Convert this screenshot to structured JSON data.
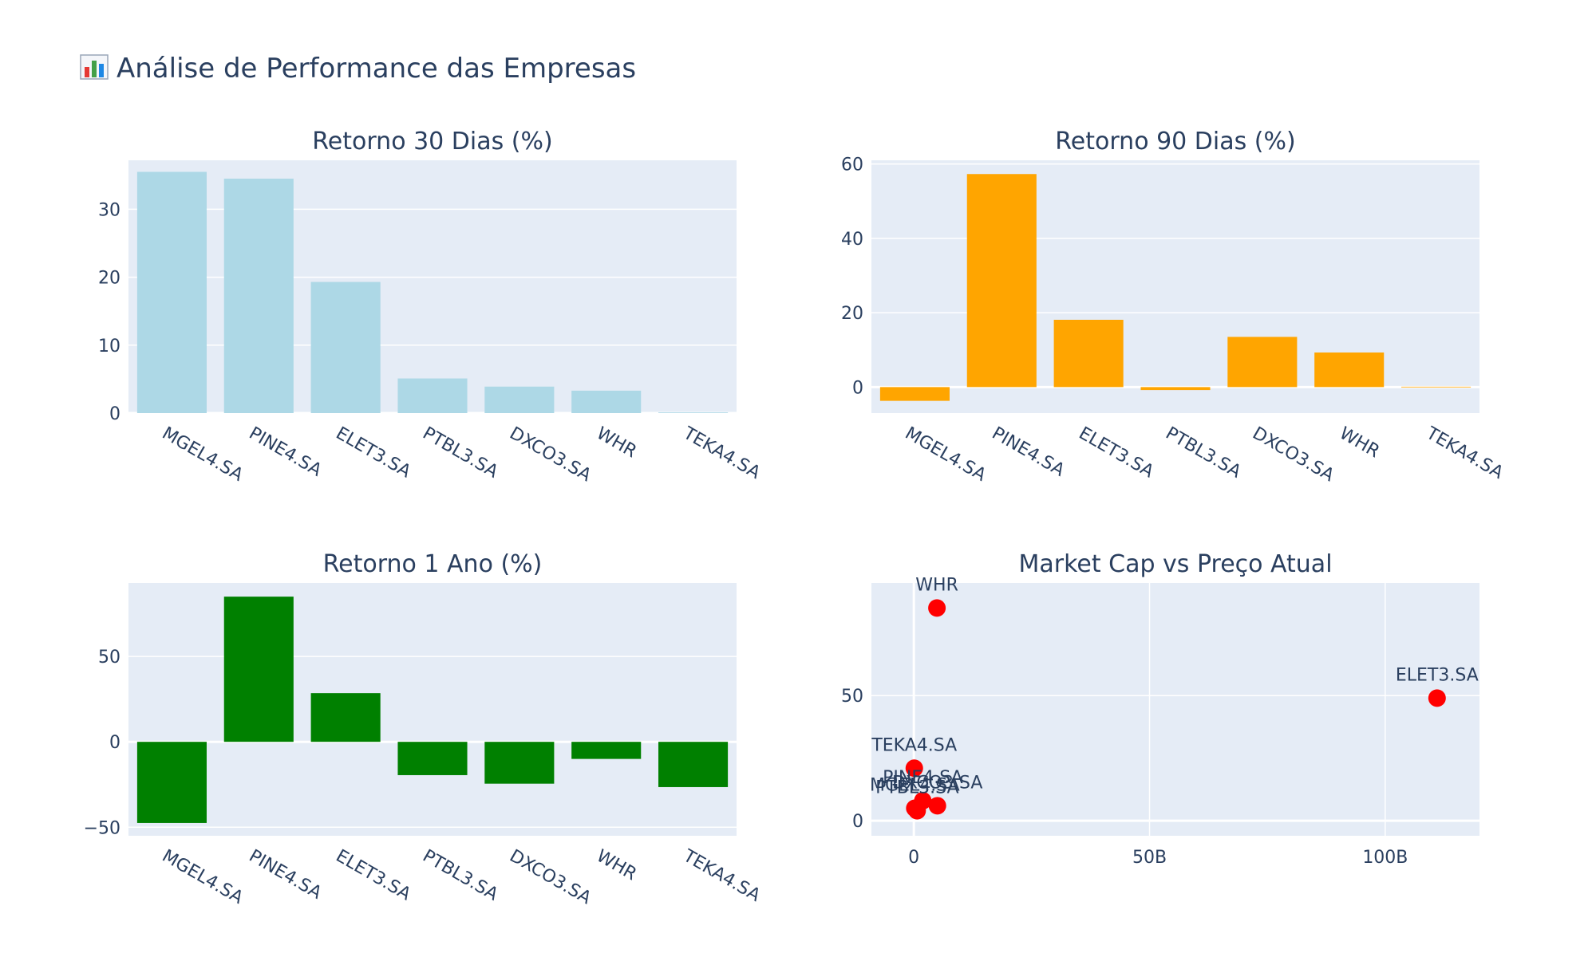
{
  "page": {
    "title": "Análise de Performance das Empresas",
    "title_icon": "bar-chart-icon"
  },
  "chart_data": [
    {
      "type": "bar",
      "title": "Retorno 30 Dias (%)",
      "categories": [
        "MGEL4.SA",
        "PINE4.SA",
        "ELET3.SA",
        "PTBL3.SA",
        "DXCO3.SA",
        "WHR",
        "TEKA4.SA"
      ],
      "values": [
        35.5,
        34.5,
        19.3,
        5.1,
        3.9,
        3.3,
        0.1
      ],
      "ylim": [
        0,
        37.2
      ],
      "yticks": [
        0,
        10,
        20,
        30
      ],
      "color": "#add8e6",
      "grid": true
    },
    {
      "type": "bar",
      "title": "Retorno 90 Dias (%)",
      "categories": [
        "MGEL4.SA",
        "PINE4.SA",
        "ELET3.SA",
        "PTBL3.SA",
        "DXCO3.SA",
        "WHR",
        "TEKA4.SA"
      ],
      "values": [
        -3.7,
        57.3,
        18.1,
        -0.8,
        13.5,
        9.3,
        0.1
      ],
      "ylim": [
        -7,
        61
      ],
      "yticks": [
        0,
        20,
        40,
        60
      ],
      "color": "#ffa500",
      "grid": true
    },
    {
      "type": "bar",
      "title": "Retorno 1 Ano (%)",
      "categories": [
        "MGEL4.SA",
        "PINE4.SA",
        "ELET3.SA",
        "PTBL3.SA",
        "DXCO3.SA",
        "WHR",
        "TEKA4.SA"
      ],
      "values": [
        -47.5,
        85,
        28.5,
        -19.5,
        -24.5,
        -10,
        -26.5
      ],
      "ylim": [
        -55,
        93
      ],
      "yticks": [
        -50,
        0,
        50
      ],
      "ytick_labels": [
        "−50",
        "0",
        "50"
      ],
      "color": "#008000",
      "grid": true
    },
    {
      "type": "scatter",
      "title": "Market Cap vs Preço Atual",
      "points": [
        {
          "label": "WHR",
          "x": 4.9,
          "y": 85
        },
        {
          "label": "ELET3.SA",
          "x": 111,
          "y": 49
        },
        {
          "label": "TEKA4.SA",
          "x": 0.1,
          "y": 21
        },
        {
          "label": "PINE4.SA",
          "x": 1.9,
          "y": 8
        },
        {
          "label": "MGEL4.SA",
          "x": 0.2,
          "y": 5
        },
        {
          "label": "DXCO3.SA",
          "x": 5,
          "y": 6
        },
        {
          "label": "PTBL3.SA",
          "x": 0.7,
          "y": 4
        }
      ],
      "xlim": [
        -9,
        120
      ],
      "ylim": [
        -6,
        95
      ],
      "xticks": [
        0,
        50,
        100
      ],
      "xtick_labels": [
        "0",
        "50B",
        "100B"
      ],
      "yticks": [
        0,
        50
      ],
      "ytick_labels": [
        "0",
        "50"
      ],
      "color": "#ff0000",
      "grid": true
    }
  ]
}
